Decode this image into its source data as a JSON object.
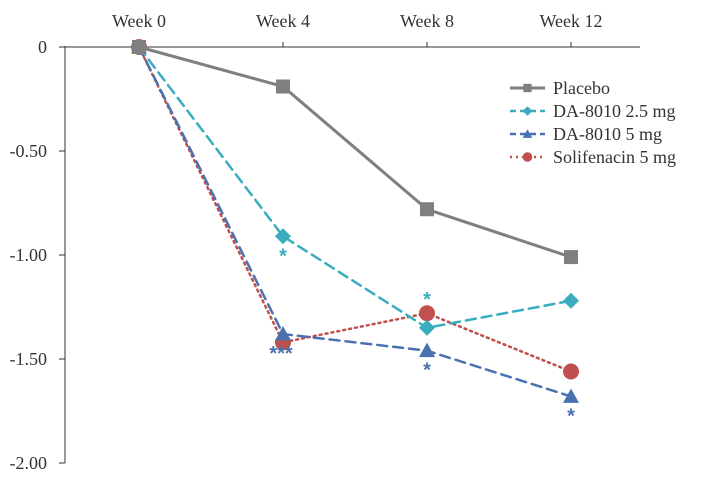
{
  "chart_data": {
    "type": "line",
    "categories": [
      "Week 0",
      "Week 4",
      "Week 8",
      "Week 12"
    ],
    "yticks": [
      "0",
      "-0.50",
      "-1.00",
      "-1.50",
      "-2.00"
    ],
    "ylim": [
      -2.0,
      0
    ],
    "grid": false,
    "legend_position": "top-right",
    "series": [
      {
        "name": "Placebo",
        "values": [
          0,
          -0.19,
          -0.78,
          -1.01
        ],
        "color": "#7f7f7f",
        "dash": "solid",
        "marker": "square",
        "significance": [
          "",
          "",
          "",
          ""
        ]
      },
      {
        "name": "DA-8010 2.5 mg",
        "values": [
          0,
          -0.91,
          -1.35,
          -1.22
        ],
        "color": "#3aacbf",
        "dash": "dashed",
        "marker": "diamond",
        "significance": [
          "",
          "*",
          "*",
          ""
        ]
      },
      {
        "name": "DA-8010 5 mg",
        "values": [
          0,
          -1.38,
          -1.46,
          -1.68
        ],
        "color": "#4a72b0",
        "dash": "dashed",
        "marker": "triangle",
        "significance": [
          "",
          "***",
          "*",
          "*"
        ]
      },
      {
        "name": "Solifenacin 5 mg",
        "values": [
          0,
          -1.42,
          -1.28,
          -1.56
        ],
        "color": "#c0504d",
        "dash": "dotted",
        "marker": "circle",
        "significance": [
          "",
          "",
          "",
          ""
        ]
      }
    ]
  }
}
